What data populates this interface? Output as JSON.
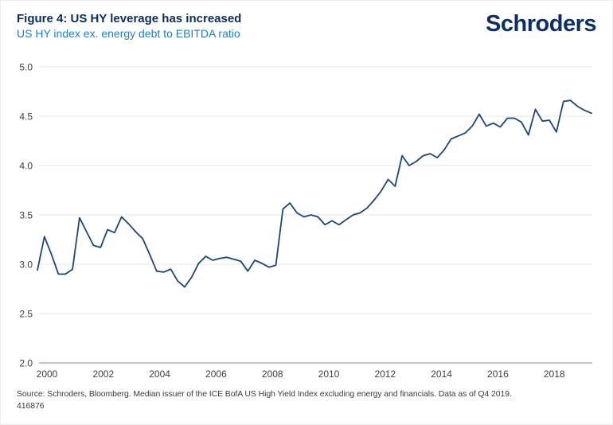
{
  "header": {
    "title": "Figure 4: US HY leverage has increased",
    "subtitle": "US HY index ex. energy debt to EBITDA ratio",
    "logo": "Schroders"
  },
  "footer": {
    "source": "Source: Schroders, Bloomberg. Median issuer of the ICE BofA US High Yield Index excluding energy and financials. Data as of Q4 2019.",
    "reference": "416876"
  },
  "colors": {
    "title": "#0a2c5a",
    "subtitle": "#2180c3",
    "logo": "#0d2d6b",
    "line": "#1b4679",
    "grid": "#e7e7e7",
    "axis": "#9c9c9c",
    "tick_text": "#3f3f3f",
    "footer_text": "#3c3c3c"
  },
  "chart_data": {
    "type": "line",
    "title": "Figure 4: US HY leverage has increased",
    "subtitle": "US HY index ex. energy debt to EBITDA ratio",
    "series_name": "US HY index ex. energy debt to EBITDA ratio",
    "x_start_year": 2000,
    "frequency": "quarterly",
    "x_end": "2019 Q4",
    "values": [
      2.94,
      3.28,
      3.1,
      2.9,
      2.9,
      2.95,
      3.47,
      3.33,
      3.19,
      3.17,
      3.35,
      3.32,
      3.48,
      3.41,
      3.33,
      3.26,
      3.1,
      2.93,
      2.92,
      2.95,
      2.83,
      2.77,
      2.87,
      3.01,
      3.08,
      3.04,
      3.06,
      3.07,
      3.05,
      3.03,
      2.93,
      3.04,
      3.01,
      2.97,
      2.99,
      3.56,
      3.62,
      3.52,
      3.48,
      3.5,
      3.48,
      3.4,
      3.44,
      3.4,
      3.45,
      3.5,
      3.52,
      3.57,
      3.65,
      3.74,
      3.86,
      3.79,
      4.1,
      4.0,
      4.04,
      4.1,
      4.12,
      4.08,
      4.16,
      4.27,
      4.3,
      4.33,
      4.4,
      4.52,
      4.4,
      4.43,
      4.39,
      4.48,
      4.48,
      4.44,
      4.31,
      4.57,
      4.45,
      4.46,
      4.34,
      4.65,
      4.66,
      4.6,
      4.56,
      4.53
    ],
    "ylim": [
      2.0,
      5.0
    ],
    "yticks": [
      5.0,
      4.5,
      4.0,
      3.5,
      3.0,
      2.5,
      2.0
    ],
    "ytick_labels": [
      "5.0",
      "4.5",
      "4.0",
      "3.5",
      "3.0",
      "2.5",
      "2.0"
    ],
    "xtick_labels": [
      "2000",
      "2002",
      "2004",
      "2006",
      "2008",
      "2010",
      "2012",
      "2014",
      "2016",
      "2018"
    ],
    "grid": "horizontal",
    "legend": "none"
  }
}
